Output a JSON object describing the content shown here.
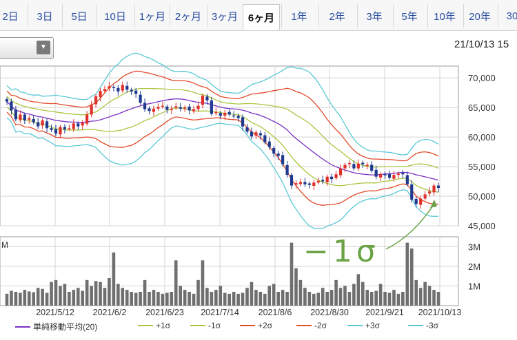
{
  "tabs": [
    {
      "label": "2日"
    },
    {
      "label": "3日"
    },
    {
      "label": "5日"
    },
    {
      "label": "10日"
    },
    {
      "label": "1ヶ月"
    },
    {
      "label": "2ヶ月"
    },
    {
      "label": "3ヶ月"
    },
    {
      "label": "6ヶ月",
      "active": true
    },
    {
      "label": "1年"
    },
    {
      "label": "2年"
    },
    {
      "label": "3年"
    },
    {
      "label": "5年"
    },
    {
      "label": "10年"
    },
    {
      "label": "20年"
    },
    {
      "label": "30"
    }
  ],
  "timestamp": "21/10/13 15",
  "annotation": "−1σ",
  "colors": {
    "up": "#e0302a",
    "down": "#1f3a8f",
    "sma": "#7a2fc4",
    "s1": "#a9c640",
    "s2": "#e24a2a",
    "s3": "#59c8d6",
    "volume": "#6f6f6f",
    "annotation": "#6aa346"
  },
  "legend": [
    {
      "label": "単純移動平均(20)",
      "color": "#7a2fc4"
    },
    {
      "label": "+1σ",
      "color": "#a9c640"
    },
    {
      "label": "-1σ",
      "color": "#a9c640"
    },
    {
      "label": "+2σ",
      "color": "#e24a2a"
    },
    {
      "label": "-2σ",
      "color": "#e24a2a"
    },
    {
      "label": "+3σ",
      "color": "#59c8d6"
    },
    {
      "label": "-3σ",
      "color": "#59c8d6"
    }
  ],
  "chart_data": [
    {
      "type": "candlestick",
      "ylim": [
        45000,
        72000
      ],
      "yticks": [
        "70,000",
        "65,000",
        "60,000",
        "55,000",
        "50,000",
        "45,000"
      ],
      "ytick_values": [
        70000,
        65000,
        60000,
        55000,
        50000,
        45000
      ],
      "x_labels": [
        "2021/5/12",
        "2021/6/2",
        "2021/6/23",
        "2021/7/14",
        "2021/8/6",
        "2021/8/30",
        "2021/9/21",
        "2021/10/13"
      ],
      "close": [
        66000,
        64500,
        63000,
        63800,
        62800,
        63200,
        62500,
        61800,
        62800,
        61500,
        61200,
        60600,
        61700,
        61300,
        61500,
        62300,
        61800,
        62400,
        63800,
        65400,
        66900,
        67800,
        68100,
        68600,
        68300,
        67700,
        68800,
        68000,
        67700,
        67300,
        65800,
        64700,
        64400,
        64800,
        65100,
        65300,
        64600,
        64800,
        65200,
        64800,
        65000,
        64500,
        64700,
        65300,
        67000,
        66200,
        63900,
        64200,
        63600,
        64100,
        63800,
        63600,
        63200,
        61800,
        60900,
        60100,
        60800,
        60300,
        59100,
        58300,
        57200,
        56800,
        55400,
        53600,
        51800,
        52200,
        52400,
        52000,
        51900,
        52300,
        52600,
        52500,
        53300,
        52900,
        53700,
        54700,
        55300,
        55600,
        54700,
        55500,
        55400,
        55300,
        54300,
        53300,
        53700,
        53600,
        53100,
        53600,
        53800,
        53700,
        52000,
        49400,
        48700,
        49600,
        50300,
        50800,
        51800,
        51400
      ],
      "volume_ylim": [
        0,
        3500000
      ],
      "volume_ticks": [
        "3M",
        "2M",
        "1M"
      ],
      "volume_tick_values": [
        3000000,
        2000000,
        1000000
      ],
      "volume": [
        600000,
        750000,
        700000,
        650000,
        800000,
        720000,
        680000,
        900000,
        850000,
        650000,
        1200000,
        1300000,
        1000000,
        1100000,
        700000,
        800000,
        900000,
        750000,
        1300000,
        1000000,
        1250000,
        1200000,
        900000,
        1400000,
        2700000,
        1100000,
        900000,
        800000,
        700000,
        650000,
        700000,
        1300000,
        700000,
        800000,
        700000,
        600000,
        650000,
        700000,
        2300000,
        1000000,
        800000,
        700000,
        600000,
        1300000,
        2300000,
        900000,
        700000,
        800000,
        1000000,
        650000,
        600000,
        700000,
        600000,
        650000,
        900000,
        1200000,
        800000,
        700000,
        600000,
        1000000,
        1100000,
        700000,
        800000,
        700000,
        3200000,
        1900000,
        1300000,
        900000,
        700000,
        600000,
        650000,
        900000,
        700000,
        800000,
        1300000,
        900000,
        1000000,
        700000,
        1100000,
        1600000,
        1200000,
        800000,
        700000,
        750000,
        1100000,
        700000,
        650000,
        800000,
        600000,
        700000,
        3200000,
        2900000,
        1300000,
        900000,
        1200000,
        1000000,
        800000,
        700000
      ],
      "yaxis_scale": "linear"
    }
  ]
}
